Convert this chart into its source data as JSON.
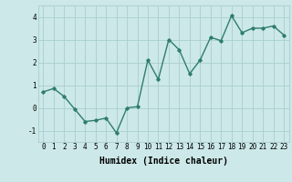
{
  "x": [
    0,
    1,
    2,
    3,
    4,
    5,
    6,
    7,
    8,
    9,
    10,
    11,
    12,
    13,
    14,
    15,
    16,
    17,
    18,
    19,
    20,
    21,
    22,
    23
  ],
  "y": [
    0.7,
    0.85,
    0.5,
    -0.05,
    -0.6,
    -0.55,
    -0.45,
    -1.1,
    0.0,
    0.05,
    2.1,
    1.25,
    3.0,
    2.55,
    1.5,
    2.1,
    3.1,
    2.95,
    4.05,
    3.3,
    3.5,
    3.5,
    3.6,
    3.2
  ],
  "xlim": [
    -0.5,
    23.5
  ],
  "ylim": [
    -1.5,
    4.5
  ],
  "yticks": [
    -1,
    0,
    1,
    2,
    3,
    4
  ],
  "xticks": [
    0,
    1,
    2,
    3,
    4,
    5,
    6,
    7,
    8,
    9,
    10,
    11,
    12,
    13,
    14,
    15,
    16,
    17,
    18,
    19,
    20,
    21,
    22,
    23
  ],
  "xlabel": "Humidex (Indice chaleur)",
  "line_color": "#2e7d6e",
  "marker": "D",
  "marker_size": 1.8,
  "line_width": 1.0,
  "bg_color": "#cce8e8",
  "grid_color": "#aacece",
  "xlabel_fontsize": 7,
  "tick_fontsize": 5.5
}
